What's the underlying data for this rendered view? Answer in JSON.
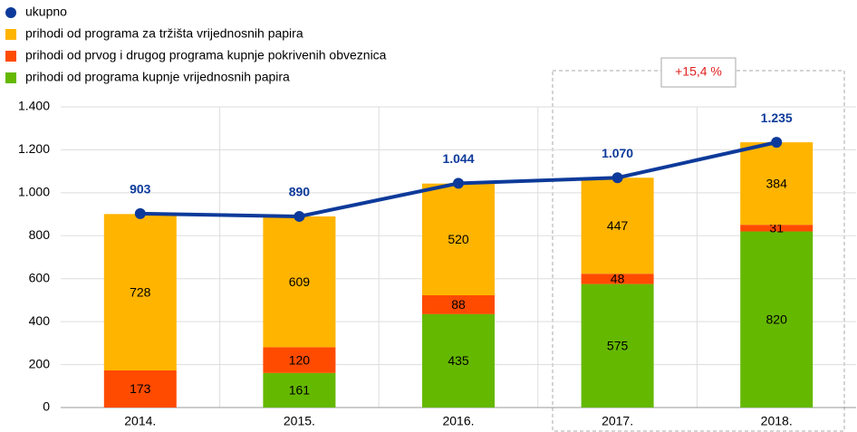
{
  "chart_data": {
    "type": "bar",
    "categories": [
      "2014.",
      "2015.",
      "2016.",
      "2017.",
      "2018."
    ],
    "series": [
      {
        "name": "ukupno",
        "type": "line",
        "color": "#0d3a9a",
        "values": [
          903,
          890,
          1044,
          1070,
          1235
        ],
        "value_labels": [
          "903",
          "890",
          "1.044",
          "1.070",
          "1.235"
        ]
      },
      {
        "name": "prihodi od programa za tržišta vrijednosnih papira",
        "color": "#ffb400",
        "values": [
          728,
          609,
          520,
          447,
          384
        ]
      },
      {
        "name": "prihodi od prvog i drugog programa kupnje pokrivenih obveznica",
        "color": "#ff4b00",
        "values": [
          173,
          120,
          88,
          48,
          31
        ]
      },
      {
        "name": "prihodi od programa kupnje vrijednosnih papira",
        "color": "#65b800",
        "values": [
          null,
          161,
          435,
          575,
          820
        ]
      }
    ],
    "annotation": "+15,4 %",
    "ylim": [
      0,
      1400
    ],
    "yticks": [
      0,
      200,
      400,
      600,
      800,
      {
        "value": 1000,
        "label": "1.000"
      },
      {
        "value": 1200,
        "label": "1.200"
      },
      {
        "value": 1400,
        "label": "1.400"
      }
    ],
    "grid": true
  }
}
